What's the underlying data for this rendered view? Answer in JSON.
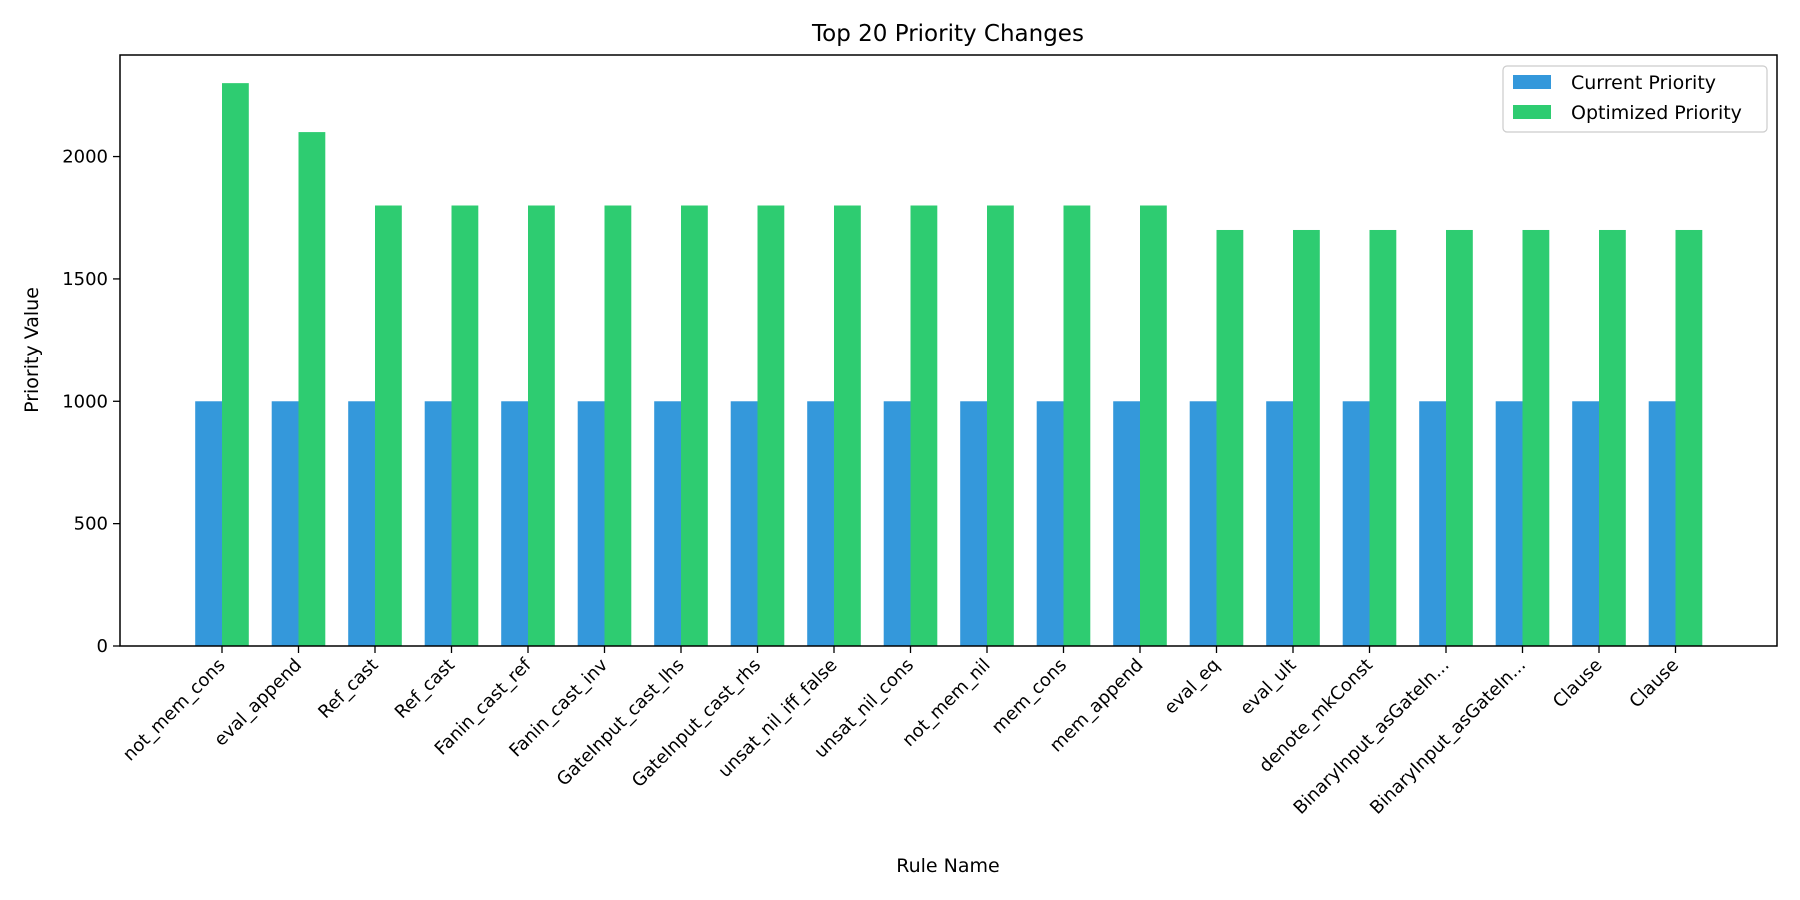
{
  "chart_data": {
    "type": "bar",
    "title": "Top 20 Priority Changes",
    "xlabel": "Rule Name",
    "ylabel": "Priority Value",
    "categories": [
      "not_mem_cons",
      "eval_append",
      "Ref_cast",
      "Ref_cast",
      "Fanin_cast_ref",
      "Fanin_cast_inv",
      "GateInput_cast_lhs",
      "GateInput_cast_rhs",
      "unsat_nil_iff_false",
      "unsat_nil_cons",
      "not_mem_nil",
      "mem_cons",
      "mem_append",
      "eval_eq",
      "eval_ult",
      "denote_mkConst",
      "BinaryInput_asGateIn...",
      "BinaryInput_asGateIn...",
      "Clause",
      "Clause"
    ],
    "series": [
      {
        "name": "Current Priority",
        "color": "#3498db",
        "values": [
          1000,
          1000,
          1000,
          1000,
          1000,
          1000,
          1000,
          1000,
          1000,
          1000,
          1000,
          1000,
          1000,
          1000,
          1000,
          1000,
          1000,
          1000,
          1000,
          1000
        ]
      },
      {
        "name": "Optimized Priority",
        "color": "#2ecc71",
        "values": [
          2300,
          2100,
          1800,
          1800,
          1800,
          1800,
          1800,
          1800,
          1800,
          1800,
          1800,
          1800,
          1800,
          1700,
          1700,
          1700,
          1700,
          1700,
          1700,
          1700
        ]
      }
    ],
    "ylim": [
      0,
      2415
    ],
    "yticks": [
      0,
      500,
      1000,
      1500,
      2000
    ],
    "grid": false,
    "legend_position": "top-right"
  }
}
